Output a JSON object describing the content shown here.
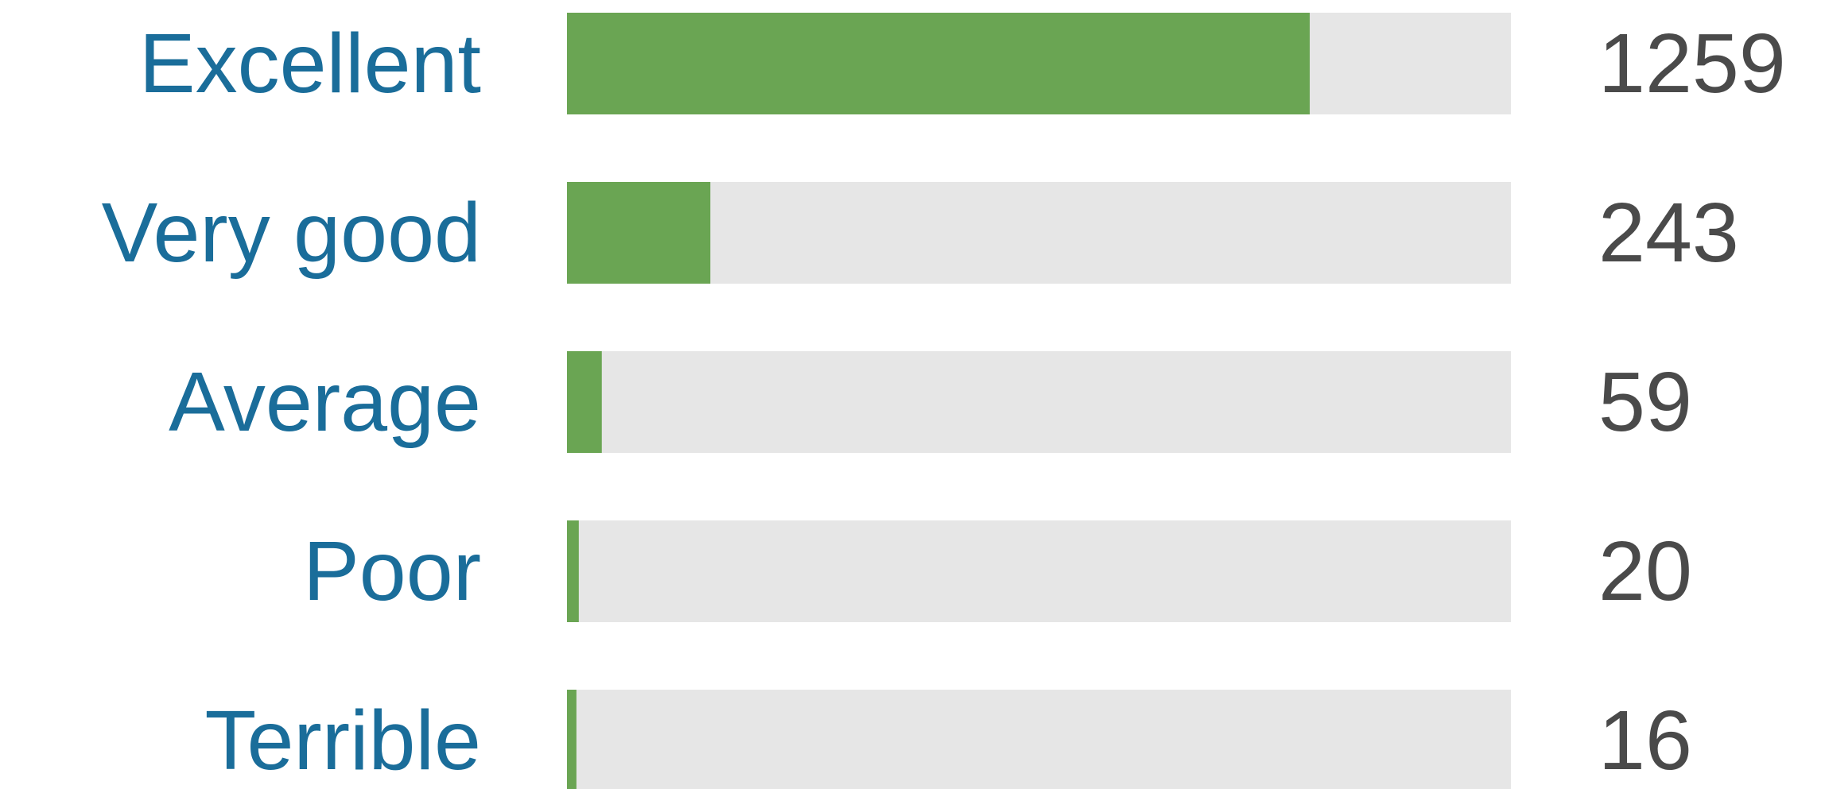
{
  "chart_data": {
    "type": "bar",
    "orientation": "horizontal",
    "categories": [
      "Excellent",
      "Very good",
      "Average",
      "Poor",
      "Terrible"
    ],
    "values": [
      1259,
      243,
      59,
      20,
      16
    ],
    "value_labels": [
      "1259",
      "243",
      "59",
      "20",
      "16"
    ],
    "xlim": [
      0,
      1600
    ],
    "grid": false,
    "legend": "none",
    "colors": {
      "bar": "#6aa553",
      "track": "#e6e6e6",
      "category_text": "#1a6d9a",
      "value_text": "#4a4a4a"
    }
  }
}
